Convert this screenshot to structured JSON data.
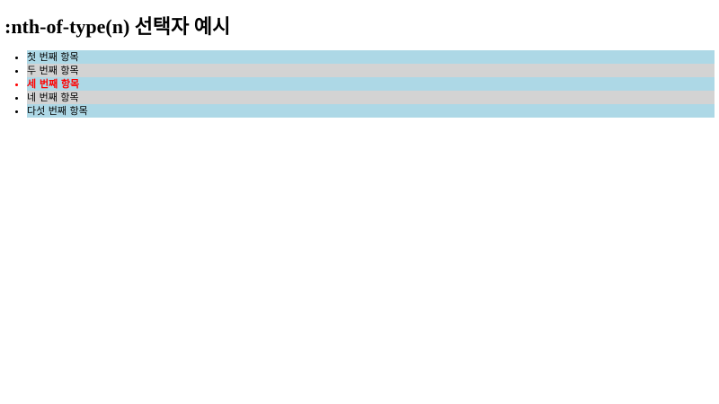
{
  "heading": ":nth-of-type(n) 선택자 예시",
  "items": [
    {
      "label": "첫 번째 항목"
    },
    {
      "label": "두 번째 항목"
    },
    {
      "label": "세 번째 항목"
    },
    {
      "label": "네 번째 항목"
    },
    {
      "label": "다섯 번째 항목"
    }
  ],
  "colors": {
    "odd_background": "#add8e6",
    "even_background": "#d3d3d3",
    "highlight_text": "#ff0000"
  }
}
